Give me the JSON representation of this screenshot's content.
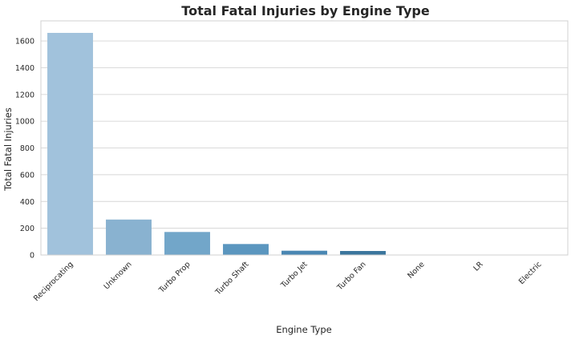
{
  "chart_data": {
    "type": "bar",
    "title": "Total Fatal Injuries by Engine Type",
    "xlabel": "Engine Type",
    "ylabel": "Total Fatal Injuries",
    "categories": [
      "Reciprocating",
      "Unknown",
      "Turbo Prop",
      "Turbo Shaft",
      "Turbo Jet",
      "Turbo Fan",
      "None",
      "LR",
      "Electric"
    ],
    "values": [
      1660,
      265,
      172,
      82,
      32,
      30,
      0,
      0,
      0
    ],
    "colors": [
      "#a1c2dc",
      "#89b2d0",
      "#72a6c9",
      "#5b96bf",
      "#4a87b3",
      "#3c769d",
      "#366a8c",
      "#305f7e",
      "#2a5470"
    ],
    "ylim": [
      0,
      1750
    ],
    "yticks": [
      0,
      200,
      400,
      600,
      800,
      1000,
      1200,
      1400,
      1600
    ],
    "grid": true,
    "legend": "none"
  }
}
